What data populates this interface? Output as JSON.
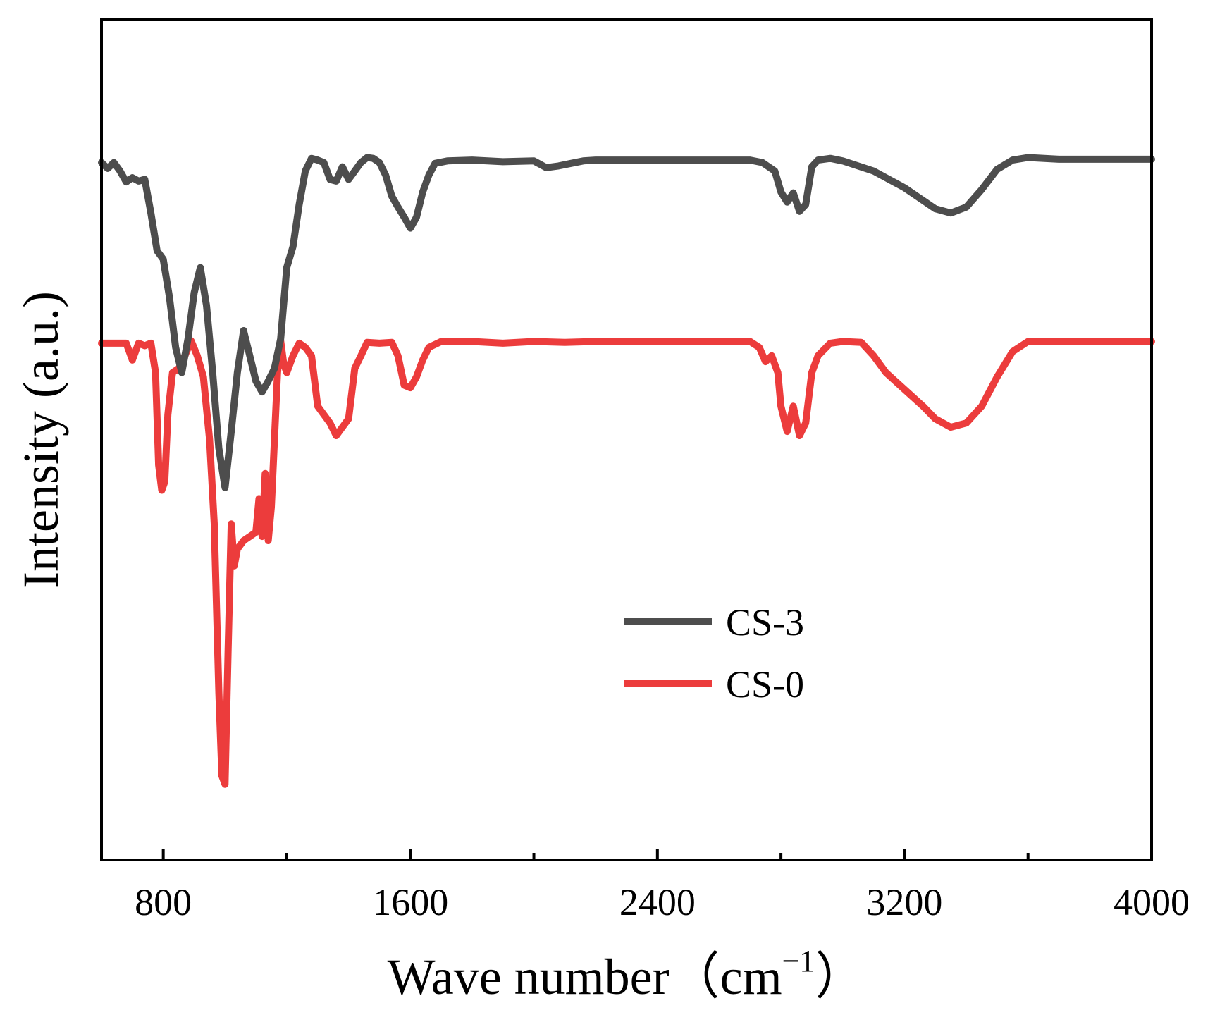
{
  "chart_data": {
    "type": "line",
    "title": "",
    "xlabel": "Wave number（cm",
    "xlabel_sup": "−1",
    "xlabel_close": "）",
    "ylabel": "Intensity (a.u.)",
    "xlim": [
      600,
      4000
    ],
    "ylim": [
      0,
      100
    ],
    "x_ticks_major": [
      800,
      1600,
      2400,
      3200,
      4000
    ],
    "x_tick_labels": [
      "800",
      "1600",
      "2400",
      "3200",
      "4000"
    ],
    "x_ticks_minor": [
      1200,
      2000,
      2800,
      3600
    ],
    "y_ticks_shown": false,
    "grid": false,
    "legend": {
      "position": "center-right",
      "entries": [
        {
          "label": "CS-3",
          "color": "#4d4d4d"
        },
        {
          "label": "CS-0",
          "color": "#ec3c3c"
        }
      ]
    },
    "series": [
      {
        "name": "CS-3",
        "color": "#4d4d4d",
        "points": [
          [
            600,
            83
          ],
          [
            620,
            82.3
          ],
          [
            640,
            83
          ],
          [
            660,
            82
          ],
          [
            680,
            80.7
          ],
          [
            700,
            81.2
          ],
          [
            720,
            80.8
          ],
          [
            740,
            81
          ],
          [
            760,
            77
          ],
          [
            780,
            72.5
          ],
          [
            800,
            71.5
          ],
          [
            820,
            67
          ],
          [
            840,
            61
          ],
          [
            860,
            58
          ],
          [
            880,
            62
          ],
          [
            900,
            67.5
          ],
          [
            920,
            70.5
          ],
          [
            940,
            66
          ],
          [
            960,
            58
          ],
          [
            980,
            49
          ],
          [
            1000,
            44.3
          ],
          [
            1020,
            51
          ],
          [
            1040,
            58
          ],
          [
            1060,
            63
          ],
          [
            1080,
            60
          ],
          [
            1100,
            57
          ],
          [
            1120,
            55.7
          ],
          [
            1140,
            57
          ],
          [
            1160,
            58.5
          ],
          [
            1180,
            62
          ],
          [
            1200,
            70.5
          ],
          [
            1220,
            73
          ],
          [
            1240,
            78
          ],
          [
            1260,
            82
          ],
          [
            1280,
            83.5
          ],
          [
            1300,
            83.3
          ],
          [
            1320,
            83
          ],
          [
            1340,
            81
          ],
          [
            1360,
            80.8
          ],
          [
            1380,
            82.5
          ],
          [
            1400,
            81
          ],
          [
            1420,
            82
          ],
          [
            1440,
            83
          ],
          [
            1460,
            83.6
          ],
          [
            1480,
            83.5
          ],
          [
            1500,
            83
          ],
          [
            1520,
            81.5
          ],
          [
            1540,
            79
          ],
          [
            1560,
            77.7
          ],
          [
            1580,
            76.5
          ],
          [
            1600,
            75.2
          ],
          [
            1620,
            76.5
          ],
          [
            1640,
            79.5
          ],
          [
            1660,
            81.5
          ],
          [
            1680,
            82.9
          ],
          [
            1720,
            83.2
          ],
          [
            1800,
            83.3
          ],
          [
            1900,
            83.1
          ],
          [
            2000,
            83.2
          ],
          [
            2040,
            82.4
          ],
          [
            2080,
            82.6
          ],
          [
            2120,
            82.9
          ],
          [
            2160,
            83.2
          ],
          [
            2200,
            83.3
          ],
          [
            2400,
            83.3
          ],
          [
            2600,
            83.3
          ],
          [
            2700,
            83.3
          ],
          [
            2740,
            83
          ],
          [
            2780,
            82
          ],
          [
            2800,
            79.5
          ],
          [
            2820,
            78.3
          ],
          [
            2840,
            79.4
          ],
          [
            2860,
            77.2
          ],
          [
            2880,
            78
          ],
          [
            2900,
            82.5
          ],
          [
            2920,
            83.3
          ],
          [
            2960,
            83.5
          ],
          [
            3000,
            83.2
          ],
          [
            3100,
            82
          ],
          [
            3200,
            80
          ],
          [
            3300,
            77.5
          ],
          [
            3350,
            77
          ],
          [
            3400,
            77.7
          ],
          [
            3450,
            79.8
          ],
          [
            3500,
            82.2
          ],
          [
            3550,
            83.3
          ],
          [
            3600,
            83.6
          ],
          [
            3700,
            83.4
          ],
          [
            3800,
            83.4
          ],
          [
            4000,
            83.4
          ]
        ]
      },
      {
        "name": "CS-0",
        "color": "#ec3c3c",
        "points": [
          [
            600,
            61.5
          ],
          [
            640,
            61.5
          ],
          [
            680,
            61.5
          ],
          [
            700,
            59.5
          ],
          [
            720,
            61.5
          ],
          [
            740,
            61.2
          ],
          [
            760,
            61.5
          ],
          [
            775,
            58
          ],
          [
            785,
            47
          ],
          [
            795,
            44
          ],
          [
            805,
            45
          ],
          [
            815,
            53
          ],
          [
            830,
            58
          ],
          [
            850,
            58.5
          ],
          [
            870,
            60
          ],
          [
            890,
            61.8
          ],
          [
            910,
            60
          ],
          [
            930,
            57.5
          ],
          [
            950,
            50
          ],
          [
            965,
            40
          ],
          [
            980,
            20
          ],
          [
            990,
            10
          ],
          [
            1000,
            9
          ],
          [
            1010,
            25
          ],
          [
            1020,
            40
          ],
          [
            1030,
            35
          ],
          [
            1040,
            37
          ],
          [
            1060,
            38
          ],
          [
            1080,
            38.5
          ],
          [
            1100,
            39
          ],
          [
            1110,
            43
          ],
          [
            1120,
            38.5
          ],
          [
            1130,
            46
          ],
          [
            1140,
            38
          ],
          [
            1150,
            42
          ],
          [
            1160,
            50
          ],
          [
            1170,
            58
          ],
          [
            1180,
            61.8
          ],
          [
            1190,
            59
          ],
          [
            1200,
            58
          ],
          [
            1220,
            60
          ],
          [
            1240,
            61.5
          ],
          [
            1260,
            61
          ],
          [
            1280,
            60
          ],
          [
            1300,
            54
          ],
          [
            1320,
            53
          ],
          [
            1340,
            52
          ],
          [
            1360,
            50.5
          ],
          [
            1380,
            51.5
          ],
          [
            1400,
            52.5
          ],
          [
            1420,
            58.5
          ],
          [
            1440,
            60
          ],
          [
            1460,
            61.6
          ],
          [
            1500,
            61.5
          ],
          [
            1540,
            61.6
          ],
          [
            1560,
            60
          ],
          [
            1580,
            56.5
          ],
          [
            1600,
            56.2
          ],
          [
            1620,
            57.5
          ],
          [
            1640,
            59.5
          ],
          [
            1660,
            61
          ],
          [
            1700,
            61.7
          ],
          [
            1800,
            61.7
          ],
          [
            1900,
            61.5
          ],
          [
            2000,
            61.7
          ],
          [
            2100,
            61.6
          ],
          [
            2200,
            61.7
          ],
          [
            2400,
            61.7
          ],
          [
            2600,
            61.7
          ],
          [
            2700,
            61.7
          ],
          [
            2730,
            61
          ],
          [
            2750,
            59.3
          ],
          [
            2770,
            60
          ],
          [
            2790,
            58
          ],
          [
            2800,
            54
          ],
          [
            2820,
            51
          ],
          [
            2840,
            54
          ],
          [
            2860,
            50.5
          ],
          [
            2880,
            52
          ],
          [
            2900,
            58
          ],
          [
            2920,
            60
          ],
          [
            2960,
            61.5
          ],
          [
            3000,
            61.7
          ],
          [
            3060,
            61.6
          ],
          [
            3100,
            60
          ],
          [
            3140,
            58
          ],
          [
            3200,
            56
          ],
          [
            3260,
            54
          ],
          [
            3300,
            52.5
          ],
          [
            3350,
            51.5
          ],
          [
            3400,
            52
          ],
          [
            3450,
            54
          ],
          [
            3500,
            57.5
          ],
          [
            3550,
            60.5
          ],
          [
            3600,
            61.7
          ],
          [
            3700,
            61.7
          ],
          [
            3800,
            61.7
          ],
          [
            4000,
            61.7
          ]
        ]
      }
    ]
  }
}
